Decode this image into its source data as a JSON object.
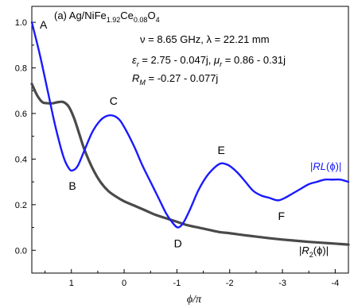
{
  "chart_data": {
    "type": "line",
    "xlabel": "ϕ/π",
    "x_ticks": [
      {
        "value": 1,
        "label": "1"
      },
      {
        "value": 0,
        "label": "0"
      },
      {
        "value": -1,
        "label": "-1"
      },
      {
        "value": -2,
        "label": "-2"
      },
      {
        "value": -3,
        "label": "-3"
      },
      {
        "value": -4,
        "label": "-4"
      }
    ],
    "y_ticks": [
      {
        "value": 0.0,
        "label": "0.0"
      },
      {
        "value": 0.2,
        "label": "0.2"
      },
      {
        "value": 0.4,
        "label": "0.4"
      },
      {
        "value": 0.6,
        "label": "0.6"
      },
      {
        "value": 0.8,
        "label": "0.8"
      },
      {
        "value": 1.0,
        "label": "1.0"
      }
    ],
    "xlim": [
      1.75,
      -4.25
    ],
    "ylim": [
      -0.1,
      1.07
    ],
    "annotations": {
      "title_prefix": "(a) Ag/NiFe",
      "title_sub1": "1.92",
      "title_mid": "Ce",
      "title_sub2": "0.08",
      "title_end": "O",
      "title_sub3": "4",
      "line1": "ν = 8.65 GHz, λ = 22.21 mm",
      "line2a": "ε",
      "line2a_sub": "r",
      "line2b": " = 2.75 - 0.047j, ",
      "line2c": "μ",
      "line2c_sub": "r",
      "line2d": " = 0.86 - 0.31j",
      "line3a": "R",
      "line3a_sub": "M",
      "line3b": " = -0.27 - 0.077j"
    },
    "points": [
      {
        "label": "A",
        "x": 1.75,
        "y": 1.0
      },
      {
        "label": "B",
        "x": 0.98,
        "y": 0.35
      },
      {
        "label": "C",
        "x": 0.2,
        "y": 0.59
      },
      {
        "label": "D",
        "x": -1.02,
        "y": 0.1
      },
      {
        "label": "E",
        "x": -1.9,
        "y": 0.38
      },
      {
        "label": "F",
        "x": -2.95,
        "y": 0.22
      }
    ],
    "series": [
      {
        "name": "|RL(ϕ)|",
        "name_parts": {
          "prefix": "|",
          "main": "RL",
          "mid": "(ϕ)|",
          "sub": ""
        },
        "color": "#1a1aff",
        "x": [
          1.75,
          1.6,
          1.45,
          1.3,
          1.15,
          1.05,
          0.98,
          0.88,
          0.75,
          0.6,
          0.45,
          0.32,
          0.2,
          0.08,
          -0.05,
          -0.2,
          -0.35,
          -0.5,
          -0.65,
          -0.8,
          -0.92,
          -1.02,
          -1.12,
          -1.25,
          -1.4,
          -1.55,
          -1.7,
          -1.82,
          -1.9,
          -2.0,
          -2.15,
          -2.3,
          -2.45,
          -2.6,
          -2.75,
          -2.88,
          -2.95,
          -3.05,
          -3.2,
          -3.35,
          -3.5,
          -3.65,
          -3.8,
          -3.95,
          -4.1,
          -4.25
        ],
        "y": [
          1.0,
          0.86,
          0.7,
          0.54,
          0.41,
          0.36,
          0.35,
          0.37,
          0.44,
          0.52,
          0.57,
          0.59,
          0.59,
          0.57,
          0.52,
          0.45,
          0.37,
          0.3,
          0.23,
          0.16,
          0.12,
          0.1,
          0.12,
          0.18,
          0.26,
          0.32,
          0.36,
          0.38,
          0.38,
          0.37,
          0.34,
          0.3,
          0.26,
          0.24,
          0.23,
          0.22,
          0.22,
          0.23,
          0.25,
          0.27,
          0.29,
          0.3,
          0.31,
          0.31,
          0.31,
          0.3
        ]
      },
      {
        "name": "|R2(ϕ)|",
        "name_parts": {
          "prefix": "|",
          "main": "R",
          "sub": "2",
          "mid": "(ϕ)|"
        },
        "color": "#4a4a4a",
        "x": [
          1.75,
          1.65,
          1.55,
          1.45,
          1.35,
          1.25,
          1.15,
          1.05,
          0.95,
          0.85,
          0.75,
          0.6,
          0.45,
          0.3,
          0.15,
          0.0,
          -0.2,
          -0.4,
          -0.6,
          -0.8,
          -1.0,
          -1.2,
          -1.4,
          -1.6,
          -1.8,
          -2.0,
          -2.25,
          -2.5,
          -2.75,
          -3.0,
          -3.25,
          -3.5,
          -3.75,
          -4.0,
          -4.25
        ],
        "y": [
          0.73,
          0.68,
          0.65,
          0.645,
          0.645,
          0.65,
          0.65,
          0.63,
          0.58,
          0.51,
          0.44,
          0.36,
          0.3,
          0.26,
          0.235,
          0.215,
          0.195,
          0.175,
          0.155,
          0.14,
          0.125,
          0.11,
          0.1,
          0.09,
          0.08,
          0.075,
          0.067,
          0.06,
          0.053,
          0.047,
          0.042,
          0.037,
          0.033,
          0.029,
          0.025
        ]
      }
    ]
  }
}
